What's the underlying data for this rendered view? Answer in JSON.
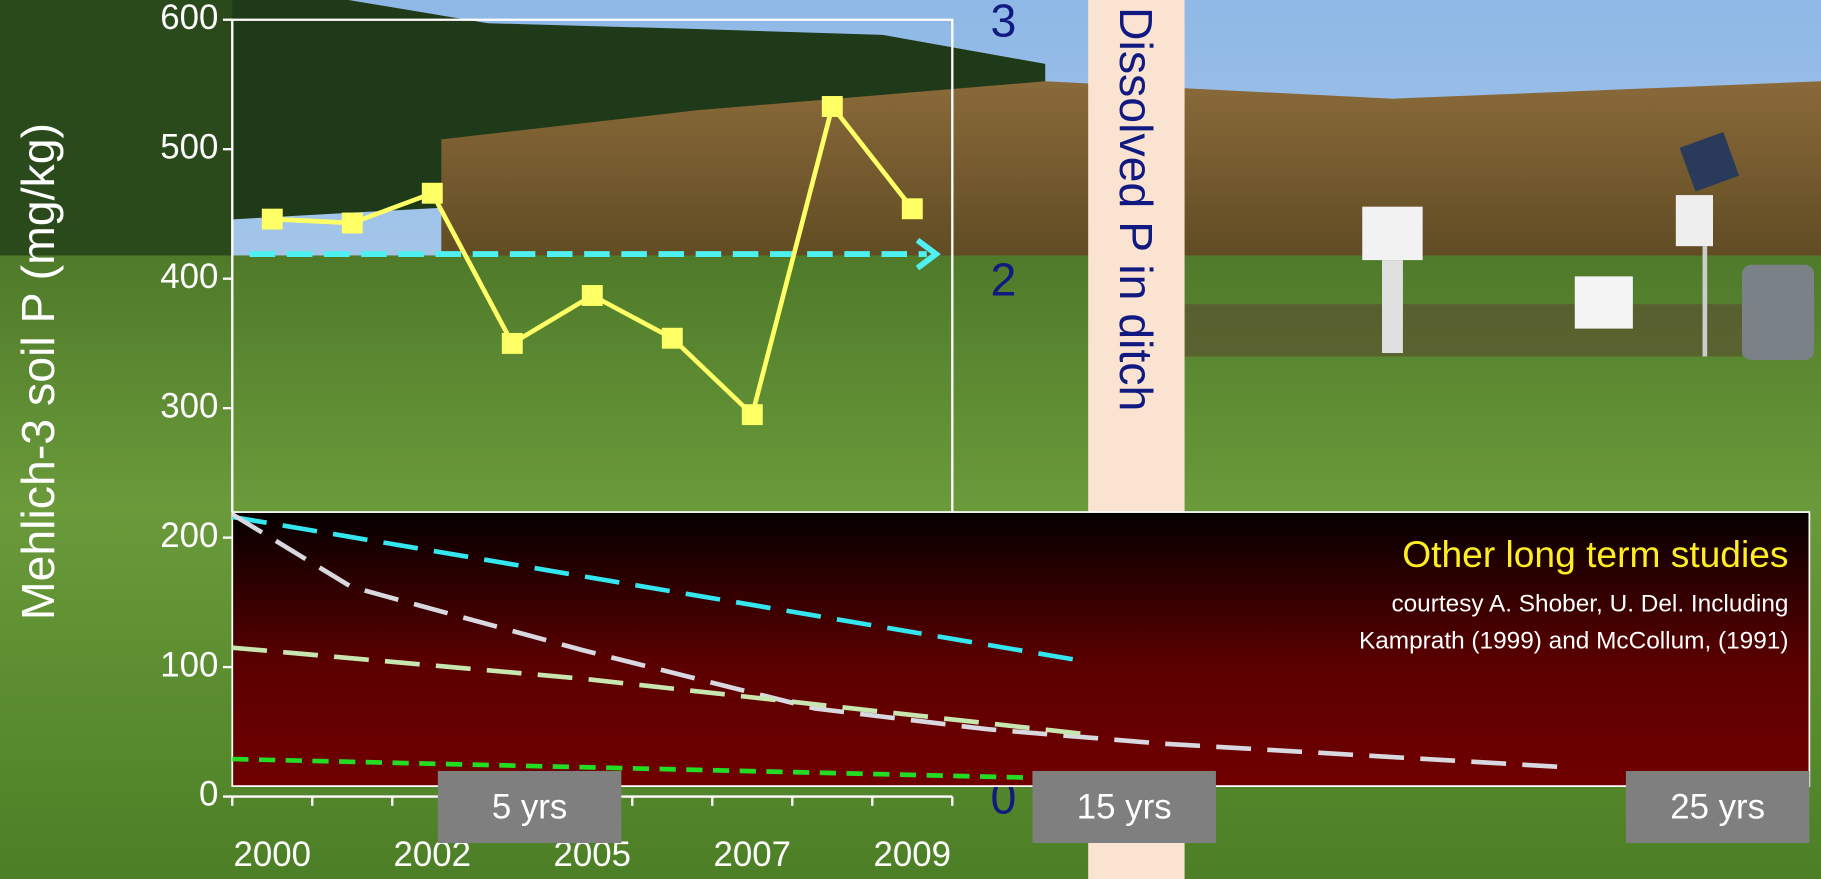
{
  "chart_data": [
    {
      "type": "line",
      "y_label": "Mehlich-3 soil P (mg/kg)",
      "y2_label": "Dissolved P in ditch",
      "categories": [
        "2000",
        null,
        "2002",
        null,
        "2005",
        null,
        "2007",
        null,
        "2009"
      ],
      "values": [
        446,
        443,
        466,
        350,
        387,
        354,
        295,
        533,
        454
      ],
      "color": "#ffff66",
      "marker": "square",
      "ylim": [
        0,
        600
      ],
      "yticks": [
        0,
        100,
        200,
        300,
        400,
        500,
        600
      ],
      "y2lim": [
        0,
        3
      ],
      "y2ticks": [
        0,
        2,
        3
      ],
      "y2color": "#101a80",
      "reference_line": {
        "value": 419,
        "color": "#4ff0f0"
      }
    },
    {
      "type": "line",
      "title": "Other long term studies",
      "subtitle": [
        "courtesy A. Shober, U. Del.  Including",
        "Kamprath (1999) and  McCollum, (1991)"
      ],
      "xlim": [
        0,
        25
      ],
      "xticks": [
        {
          "value": 5,
          "label": "5 yrs"
        },
        {
          "value": 15,
          "label": "15 yrs"
        },
        {
          "value": 25,
          "label": "25 yrs"
        }
      ],
      "ylim": [
        0,
        600
      ],
      "series": [
        {
          "color": "#33e6f0",
          "dash": "30 14",
          "x": [
            0,
            14.4
          ],
          "values": [
            216,
            104
          ]
        },
        {
          "color": "#d8d8e0",
          "dash": "30 14",
          "x": [
            0,
            2,
            5.9,
            9.8,
            12.7,
            15.6,
            22.3
          ],
          "values": [
            218,
            162,
            113,
            68,
            52,
            41,
            23
          ]
        },
        {
          "color": "#c8e6b0",
          "dash": "30 14",
          "x": [
            0,
            5.9,
            14.4
          ],
          "values": [
            115,
            91,
            48
          ]
        },
        {
          "color": "#22dd22",
          "dash": "14 9",
          "x": [
            0,
            14.9
          ],
          "values": [
            29,
            13
          ]
        }
      ]
    }
  ]
}
